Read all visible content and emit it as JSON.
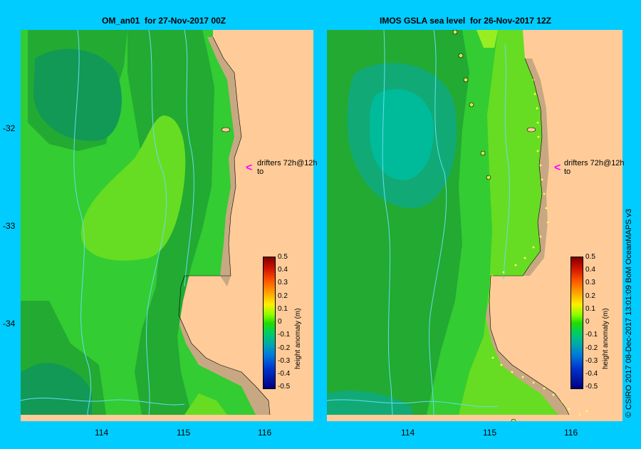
{
  "left_panel": {
    "title": "OM_an01  for 27-Nov-2017 00Z",
    "drifter_label": "drifters 72h@12h\nto"
  },
  "right_panel": {
    "title": "IMOS GSLA sea level  for 26-Nov-2017 12Z",
    "drifter_label": "drifters 72h@12h\nto"
  },
  "y_ticks": [
    "-32",
    "-33",
    "-34"
  ],
  "x_ticks": [
    "114",
    "115",
    "116"
  ],
  "colorbar": {
    "title": "height anomaly (m)",
    "labels": [
      "0.5",
      "0.4",
      "0.3",
      "0.2",
      "0.1",
      "0",
      "-0.1",
      "-0.2",
      "-0.3",
      "-0.4",
      "-0.5"
    ]
  },
  "copyright": "© CSIRO 2017   08-Dec-2017 13:01:09 BoM OceanMAPS v3",
  "colors": {
    "background": "#00ccff",
    "land": "#ffcc99",
    "shelf": "#c8a882",
    "arrow": "#ff00ff"
  }
}
